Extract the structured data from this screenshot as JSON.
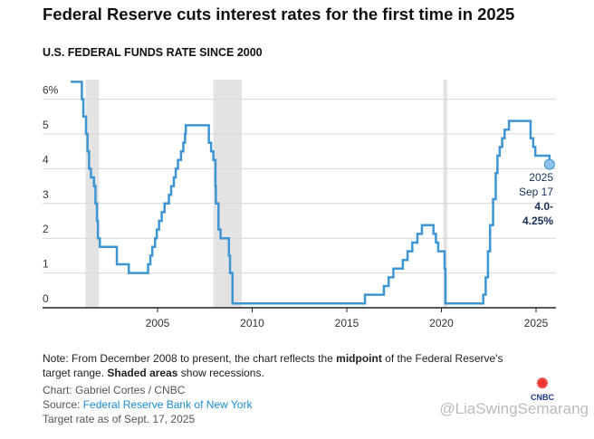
{
  "title": "Federal Reserve cuts interest rates for the first time in 2025",
  "subtitle": "U.S. FEDERAL FUNDS RATE SINCE 2000",
  "note": {
    "pre": "Note: From December 2008 to present, the chart reflects the ",
    "b1": "midpoint",
    "mid": " of the Federal Reserve's target range. ",
    "b2": "Shaded areas",
    "post": " show recessions."
  },
  "credit": "Chart: Gabriel Cortes / CNBC",
  "source_label": "Source: ",
  "source_link": "Federal Reserve Bank of New York",
  "asof": "Target rate as of Sept. 17, 2025",
  "logo": "CNBC",
  "watermark": "@LiaSwingSemarang",
  "annotation": {
    "year": "2025",
    "date": "Sep 17",
    "value1": "4.0-",
    "value2": "4.25%"
  },
  "colors": {
    "line": "#3d95d3",
    "recession": "#e3e3e3",
    "grid": "#d8d8d8",
    "annotation": "#1a2f5a"
  },
  "chart_data": {
    "type": "line",
    "step": true,
    "grid": true,
    "xlim": [
      1999.5,
      2026.1
    ],
    "ylim": [
      0,
      6.5
    ],
    "x_ticks": [
      2005,
      2010,
      2015,
      2020,
      2025
    ],
    "y_ticks": [
      0,
      1,
      2,
      3,
      4,
      5,
      6
    ],
    "y_tick_labels": [
      "0",
      "1",
      "2",
      "3",
      "4",
      "5",
      "6%"
    ],
    "recessions": [
      [
        2001.2,
        2001.9
      ],
      [
        2007.95,
        2009.45
      ],
      [
        2020.1,
        2020.3
      ]
    ],
    "points": [
      [
        2000.4,
        6.5
      ],
      [
        2001.0,
        6.0
      ],
      [
        2001.08,
        5.5
      ],
      [
        2001.22,
        5.0
      ],
      [
        2001.3,
        4.5
      ],
      [
        2001.38,
        4.0
      ],
      [
        2001.48,
        3.75
      ],
      [
        2001.64,
        3.5
      ],
      [
        2001.72,
        3.0
      ],
      [
        2001.8,
        2.5
      ],
      [
        2001.85,
        2.0
      ],
      [
        2001.95,
        1.75
      ],
      [
        2002.85,
        1.25
      ],
      [
        2003.48,
        1.0
      ],
      [
        2004.5,
        1.25
      ],
      [
        2004.62,
        1.5
      ],
      [
        2004.72,
        1.75
      ],
      [
        2004.87,
        2.0
      ],
      [
        2004.96,
        2.25
      ],
      [
        2005.08,
        2.5
      ],
      [
        2005.22,
        2.75
      ],
      [
        2005.37,
        3.0
      ],
      [
        2005.6,
        3.25
      ],
      [
        2005.72,
        3.5
      ],
      [
        2005.86,
        3.75
      ],
      [
        2005.96,
        4.0
      ],
      [
        2006.08,
        4.25
      ],
      [
        2006.24,
        4.5
      ],
      [
        2006.36,
        4.75
      ],
      [
        2006.45,
        5.0
      ],
      [
        2006.49,
        5.25
      ],
      [
        2007.71,
        4.75
      ],
      [
        2007.83,
        4.5
      ],
      [
        2007.95,
        4.25
      ],
      [
        2008.06,
        3.5
      ],
      [
        2008.08,
        3.0
      ],
      [
        2008.22,
        2.25
      ],
      [
        2008.33,
        2.0
      ],
      [
        2008.77,
        1.5
      ],
      [
        2008.83,
        1.0
      ],
      [
        2008.96,
        0.125
      ],
      [
        2015.96,
        0.375
      ],
      [
        2016.96,
        0.625
      ],
      [
        2017.21,
        0.875
      ],
      [
        2017.46,
        1.125
      ],
      [
        2017.96,
        1.375
      ],
      [
        2018.21,
        1.625
      ],
      [
        2018.46,
        1.875
      ],
      [
        2018.73,
        2.125
      ],
      [
        2018.97,
        2.375
      ],
      [
        2019.58,
        2.125
      ],
      [
        2019.71,
        1.875
      ],
      [
        2019.83,
        1.625
      ],
      [
        2020.17,
        1.125
      ],
      [
        2020.21,
        0.125
      ],
      [
        2022.21,
        0.375
      ],
      [
        2022.34,
        0.875
      ],
      [
        2022.46,
        1.625
      ],
      [
        2022.57,
        2.375
      ],
      [
        2022.73,
        3.125
      ],
      [
        2022.87,
        3.875
      ],
      [
        2022.96,
        4.375
      ],
      [
        2023.08,
        4.625
      ],
      [
        2023.21,
        4.875
      ],
      [
        2023.34,
        5.125
      ],
      [
        2023.57,
        5.375
      ],
      [
        2024.71,
        4.875
      ],
      [
        2024.85,
        4.625
      ],
      [
        2024.96,
        4.375
      ],
      [
        2025.71,
        4.125
      ]
    ],
    "end": [
      2025.71,
      4.125
    ]
  }
}
